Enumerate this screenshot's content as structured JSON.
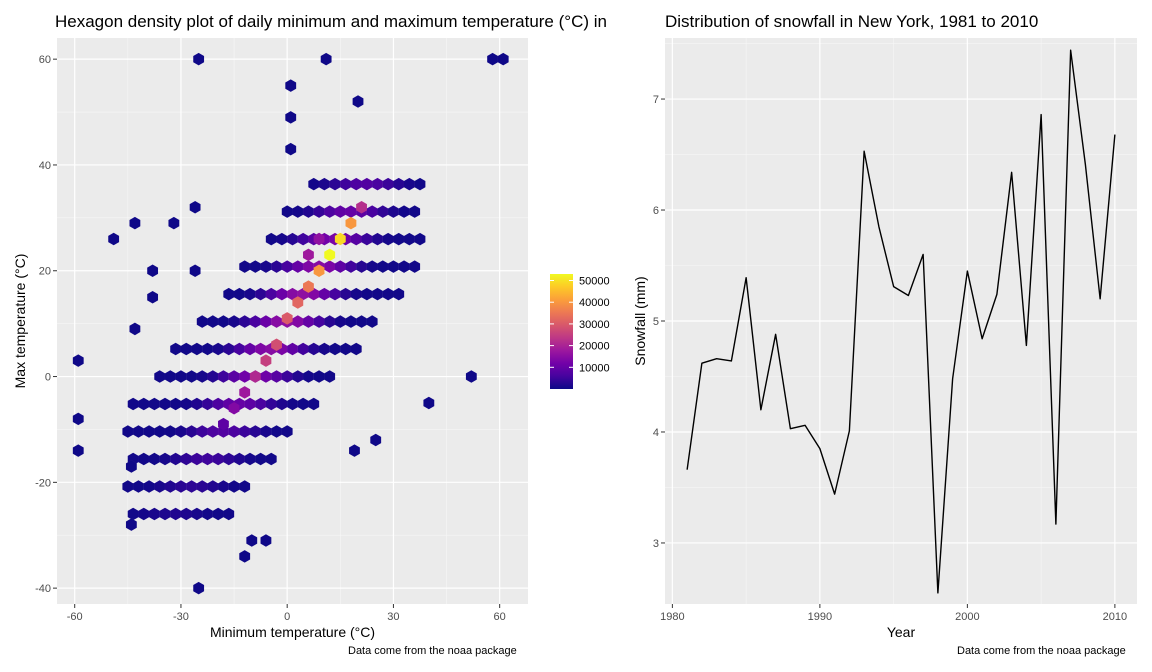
{
  "chart_data": [
    {
      "type": "heatmap",
      "subtype": "hexbin",
      "title": "Hexagon density plot of daily minimum and maximum temperature (°C) in",
      "xlabel": "Minimum temperature (°C)",
      "ylabel": "Max temperature (°C)",
      "xlim": [
        -65,
        68
      ],
      "ylim": [
        -43,
        64
      ],
      "xticks": [
        -60,
        -30,
        0,
        30,
        60
      ],
      "yticks": [
        -40,
        -20,
        0,
        20,
        40,
        60
      ],
      "xtick_labels": [
        "-60",
        "-30",
        "0",
        "30",
        "60"
      ],
      "ytick_labels": [
        "-40",
        "-20",
        "0",
        "20",
        "40",
        "60"
      ],
      "caption": "Data come from the noaa package",
      "legend": {
        "placement": "right",
        "ticks": [
          10000,
          20000,
          30000,
          40000,
          50000
        ],
        "tick_labels": [
          "10000",
          "20000",
          "30000",
          "40000",
          "50000"
        ],
        "range": [
          0,
          53000
        ],
        "colors": [
          "#0d0887",
          "#46039f",
          "#7201a8",
          "#9c179e",
          "#bd3786",
          "#d8576b",
          "#ed7953",
          "#fb9f3a",
          "#fdca26",
          "#f0f921"
        ]
      },
      "grid": true,
      "bins": [
        {
          "x": 12,
          "y": 23,
          "count": 53000
        },
        {
          "x": 15,
          "y": 26,
          "count": 49000
        },
        {
          "x": 18,
          "y": 29,
          "count": 40000
        },
        {
          "x": 9,
          "y": 20,
          "count": 40000
        },
        {
          "x": 6,
          "y": 17,
          "count": 35000
        },
        {
          "x": 3,
          "y": 14,
          "count": 32000
        },
        {
          "x": 0,
          "y": 11,
          "count": 30000
        },
        {
          "x": -3,
          "y": 6,
          "count": 28000
        },
        {
          "x": -6,
          "y": 3,
          "count": 25000
        },
        {
          "x": -9,
          "y": 0,
          "count": 21000
        },
        {
          "x": -12,
          "y": -3,
          "count": 18000
        },
        {
          "x": -15,
          "y": -6,
          "count": 14000
        },
        {
          "x": -18,
          "y": -9,
          "count": 9000
        },
        {
          "x": 21,
          "y": 32,
          "count": 22000
        },
        {
          "x": 9,
          "y": 26,
          "count": 16000
        },
        {
          "x": 6,
          "y": 23,
          "count": 18000
        }
      ]
    },
    {
      "type": "line",
      "title": "Distribution of snowfall in New York, 1981 to 2010",
      "xlabel": "Year",
      "ylabel": "Snowfall (mm)",
      "xlim": [
        1979.5,
        2011.5
      ],
      "ylim": [
        2.45,
        7.55
      ],
      "xticks": [
        1980,
        1990,
        2000,
        2010
      ],
      "yticks": [
        3,
        4,
        5,
        6,
        7
      ],
      "xtick_labels": [
        "1980",
        "1990",
        "2000",
        "2010"
      ],
      "ytick_labels": [
        "3",
        "4",
        "5",
        "6",
        "7"
      ],
      "caption": "Data come from the noaa package",
      "grid": true,
      "color": "#000000",
      "x": [
        1981,
        1982,
        1983,
        1984,
        1985,
        1986,
        1987,
        1988,
        1989,
        1990,
        1991,
        1992,
        1993,
        1994,
        1995,
        1996,
        1997,
        1998,
        1999,
        2000,
        2001,
        2002,
        2003,
        2004,
        2005,
        2006,
        2007,
        2008,
        2009,
        2010
      ],
      "y": [
        3.66,
        4.62,
        4.66,
        4.64,
        5.39,
        4.2,
        4.88,
        4.03,
        4.06,
        3.85,
        3.44,
        4.01,
        6.53,
        5.85,
        5.31,
        5.23,
        5.6,
        2.55,
        4.48,
        5.45,
        4.84,
        5.24,
        6.34,
        4.78,
        6.86,
        3.17,
        7.44,
        6.41,
        5.2,
        6.68
      ]
    }
  ]
}
